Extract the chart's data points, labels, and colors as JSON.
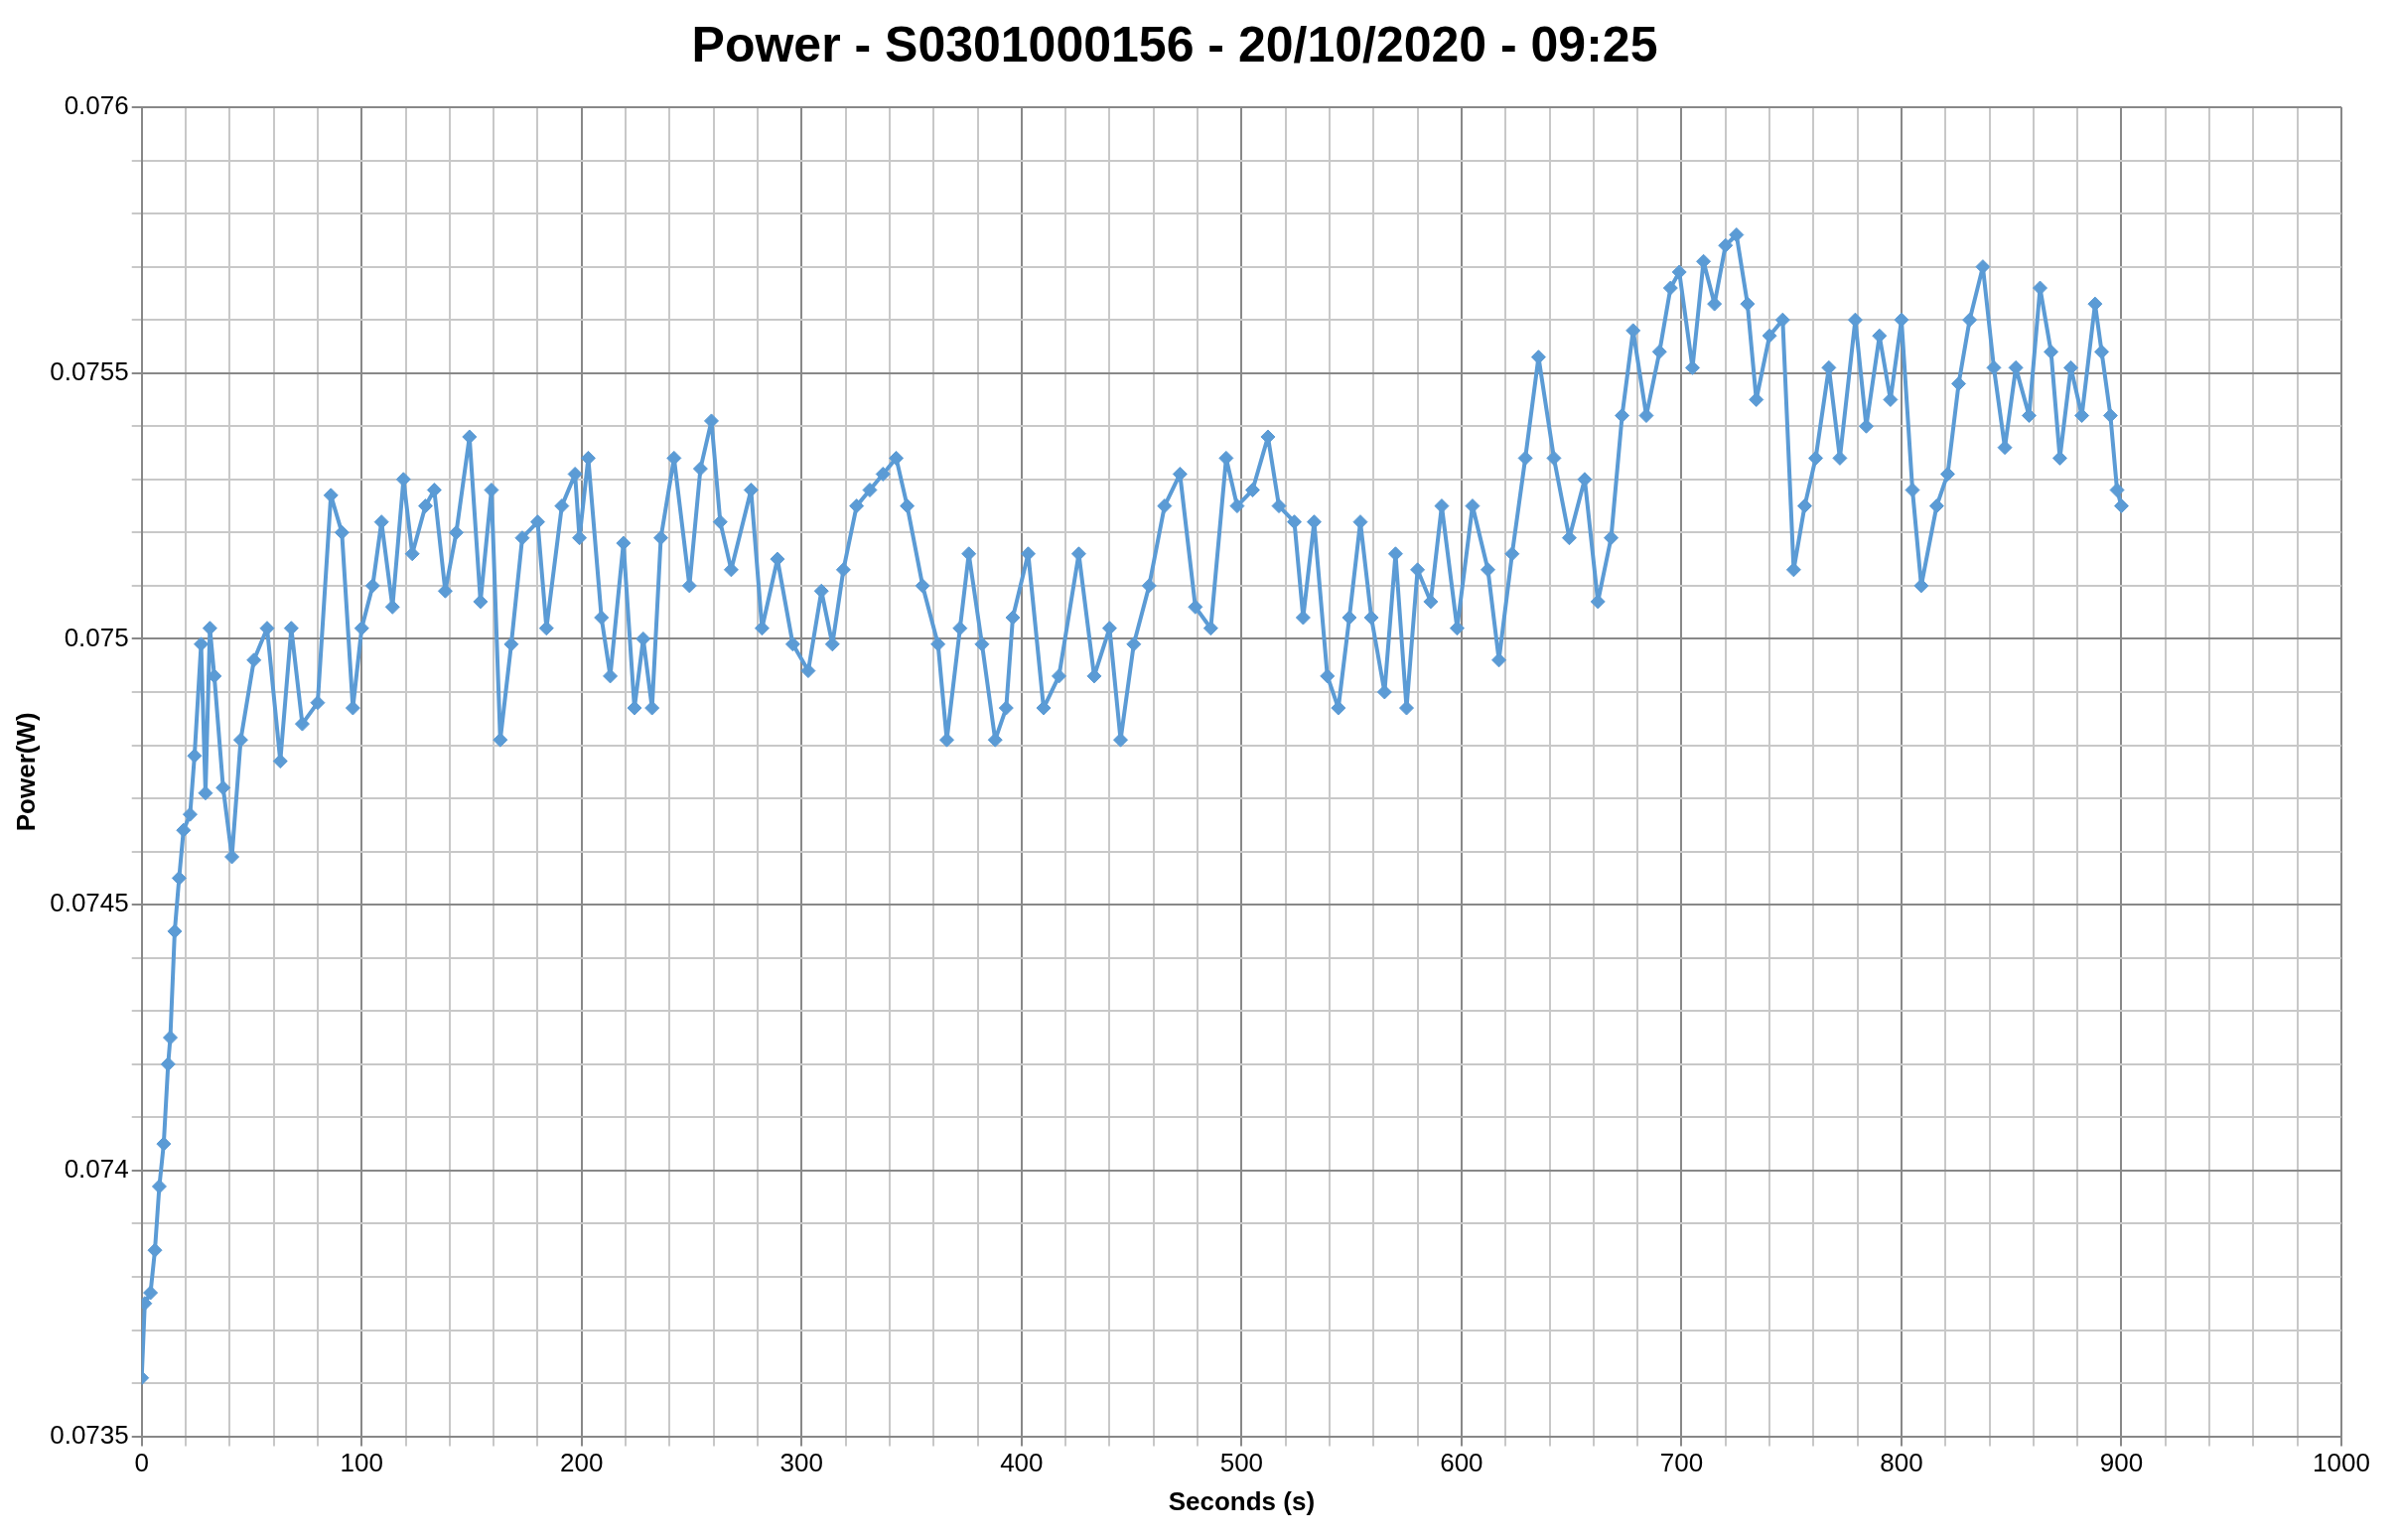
{
  "chart_data": {
    "type": "line",
    "title": "Power - S0301000156 - 20/10/2020 - 09:25",
    "xlabel": "Seconds (s)",
    "ylabel": "Power(W)",
    "marker": "diamond",
    "line_style": "solid",
    "grid": true,
    "legend": false,
    "x": [
      0,
      1.4,
      4,
      6,
      8,
      10,
      12,
      13,
      15,
      17,
      19,
      22,
      24,
      27,
      29,
      31,
      33,
      37,
      41,
      45,
      51,
      57,
      63,
      68,
      73,
      80,
      86,
      91,
      96,
      100,
      105,
      109,
      114,
      119,
      123,
      129,
      133,
      138,
      143,
      149,
      154,
      159,
      163,
      168,
      173,
      180,
      184,
      191,
      197,
      199,
      203,
      209,
      213,
      219,
      224,
      228,
      232,
      236,
      242,
      249,
      254,
      259,
      263,
      268,
      277,
      282,
      289,
      296,
      303,
      309,
      314,
      319,
      325,
      331,
      337,
      343,
      348,
      355,
      362,
      366,
      372,
      376,
      382,
      388,
      393,
      396,
      403,
      410,
      417,
      426,
      433,
      440,
      445,
      451,
      458,
      465,
      472,
      479,
      486,
      493,
      498,
      505,
      512,
      517,
      524,
      528,
      533,
      539,
      544,
      549,
      554,
      559,
      565,
      570,
      575,
      580,
      586,
      591,
      598,
      605,
      612,
      617,
      623,
      629,
      635,
      642,
      649,
      656,
      662,
      668,
      673,
      678,
      684,
      690,
      695,
      699,
      705,
      710,
      715,
      720,
      725,
      730,
      734,
      740,
      746,
      751,
      756,
      761,
      767,
      772,
      779,
      784,
      790,
      795,
      800,
      805,
      809,
      816,
      821,
      826,
      831,
      837,
      842,
      847,
      852,
      858,
      863,
      868,
      872,
      877,
      882,
      888,
      891,
      895,
      898,
      900
    ],
    "series": [
      {
        "color": "#5b9bd5",
        "values": [
          0.07361,
          0.07375,
          0.07377,
          0.07385,
          0.07397,
          0.07405,
          0.0742,
          0.07425,
          0.07445,
          0.07455,
          0.07464,
          0.07467,
          0.07478,
          0.07499,
          0.07471,
          0.07502,
          0.07493,
          0.07472,
          0.07459,
          0.07481,
          0.07496,
          0.07502,
          0.07477,
          0.07502,
          0.07484,
          0.07488,
          0.07527,
          0.0752,
          0.07487,
          0.07502,
          0.0751,
          0.07522,
          0.07506,
          0.0753,
          0.07516,
          0.07525,
          0.07528,
          0.07509,
          0.0752,
          0.07538,
          0.07507,
          0.07528,
          0.07481,
          0.07499,
          0.07519,
          0.07522,
          0.07502,
          0.07525,
          0.07531,
          0.07519,
          0.07534,
          0.07504,
          0.07493,
          0.07518,
          0.07487,
          0.075,
          0.07487,
          0.07519,
          0.07534,
          0.0751,
          0.07532,
          0.07541,
          0.07522,
          0.07513,
          0.07528,
          0.07502,
          0.07515,
          0.07499,
          0.07494,
          0.07509,
          0.07499,
          0.07513,
          0.07525,
          0.07528,
          0.07531,
          0.07534,
          0.07525,
          0.0751,
          0.07499,
          0.07481,
          0.07502,
          0.07516,
          0.07499,
          0.07481,
          0.07487,
          0.07504,
          0.07516,
          0.07487,
          0.07493,
          0.07516,
          0.07493,
          0.07502,
          0.07481,
          0.07499,
          0.0751,
          0.07525,
          0.07531,
          0.07506,
          0.07502,
          0.07534,
          0.07525,
          0.07528,
          0.07538,
          0.07525,
          0.07522,
          0.07504,
          0.07522,
          0.07493,
          0.07487,
          0.07504,
          0.07522,
          0.07504,
          0.0749,
          0.07516,
          0.07487,
          0.07513,
          0.07507,
          0.07525,
          0.07502,
          0.07525,
          0.07513,
          0.07496,
          0.07516,
          0.07534,
          0.07553,
          0.07534,
          0.07519,
          0.0753,
          0.07507,
          0.07519,
          0.07542,
          0.07558,
          0.07542,
          0.07554,
          0.07566,
          0.07569,
          0.07551,
          0.07571,
          0.07563,
          0.07574,
          0.07576,
          0.07563,
          0.07545,
          0.07557,
          0.0756,
          0.07513,
          0.07525,
          0.07534,
          0.07551,
          0.07534,
          0.0756,
          0.0754,
          0.07557,
          0.07545,
          0.0756,
          0.07528,
          0.0751,
          0.07525,
          0.07531,
          0.07548,
          0.0756,
          0.0757,
          0.07551,
          0.07536,
          0.07551,
          0.07542,
          0.07566,
          0.07554,
          0.07534,
          0.07551,
          0.07542,
          0.07563,
          0.07554,
          0.07542,
          0.07528,
          0.07525
        ]
      }
    ],
    "xlim": [
      0,
      1000
    ],
    "xticks": [
      0,
      {
        "value": 20,
        "label": null
      },
      {
        "value": 40,
        "label": null
      },
      {
        "value": 60,
        "label": null
      },
      {
        "value": 80,
        "label": null
      },
      100,
      {
        "value": 120,
        "label": null
      },
      {
        "value": 140,
        "label": null
      },
      {
        "value": 160,
        "label": null
      },
      {
        "value": 180,
        "label": null
      },
      200,
      {
        "value": 220,
        "label": null
      },
      {
        "value": 240,
        "label": null
      },
      {
        "value": 260,
        "label": null
      },
      {
        "value": 280,
        "label": null
      },
      300,
      {
        "value": 320,
        "label": null
      },
      {
        "value": 340,
        "label": null
      },
      {
        "value": 360,
        "label": null
      },
      {
        "value": 380,
        "label": null
      },
      400,
      {
        "value": 420,
        "label": null
      },
      {
        "value": 440,
        "label": null
      },
      {
        "value": 460,
        "label": null
      },
      {
        "value": 480,
        "label": null
      },
      500,
      {
        "value": 520,
        "label": null
      },
      {
        "value": 540,
        "label": null
      },
      {
        "value": 560,
        "label": null
      },
      {
        "value": 580,
        "label": null
      },
      600,
      {
        "value": 620,
        "label": null
      },
      {
        "value": 640,
        "label": null
      },
      {
        "value": 660,
        "label": null
      },
      {
        "value": 680,
        "label": null
      },
      700,
      {
        "value": 720,
        "label": null
      },
      {
        "value": 740,
        "label": null
      },
      {
        "value": 760,
        "label": null
      },
      {
        "value": 780,
        "label": null
      },
      800,
      {
        "value": 820,
        "label": null
      },
      {
        "value": 840,
        "label": null
      },
      {
        "value": 860,
        "label": null
      },
      {
        "value": 880,
        "label": null
      },
      900,
      {
        "value": 920,
        "label": null
      },
      {
        "value": 940,
        "label": null
      },
      {
        "value": 960,
        "label": null
      },
      {
        "value": 980,
        "label": null
      },
      1000
    ],
    "ylim": [
      0.0735,
      0.076
    ],
    "yticks": [
      0.0735,
      {
        "value": 0.0736,
        "label": null
      },
      {
        "value": 0.0737,
        "label": null
      },
      {
        "value": 0.0738,
        "label": null
      },
      {
        "value": 0.0739,
        "label": null
      },
      0.074,
      {
        "value": 0.0741,
        "label": null
      },
      {
        "value": 0.0742,
        "label": null
      },
      {
        "value": 0.0743,
        "label": null
      },
      {
        "value": 0.0744,
        "label": null
      },
      0.0745,
      {
        "value": 0.0746,
        "label": null
      },
      {
        "value": 0.0747,
        "label": null
      },
      {
        "value": 0.0748,
        "label": null
      },
      {
        "value": 0.0749,
        "label": null
      },
      0.075,
      {
        "value": 0.0751,
        "label": null
      },
      {
        "value": 0.0752,
        "label": null
      },
      {
        "value": 0.0753,
        "label": null
      },
      {
        "value": 0.0754,
        "label": null
      },
      0.0755,
      {
        "value": 0.0756,
        "label": null
      },
      {
        "value": 0.0757,
        "label": null
      },
      {
        "value": 0.0758,
        "label": null
      },
      {
        "value": 0.0759,
        "label": null
      },
      0.076
    ]
  }
}
